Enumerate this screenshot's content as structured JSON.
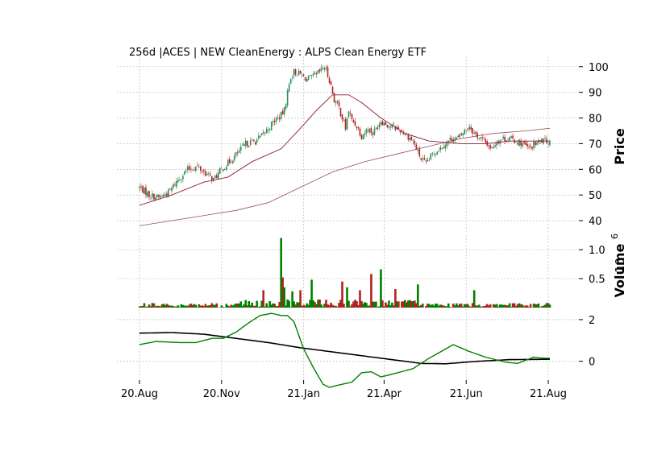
{
  "chart_data": {
    "type": "candlestick",
    "title": "256d |ACES | NEW CleanEnergy : ALPS Clean Energy ETF",
    "x_tick_labels": [
      "20.Aug",
      "20.Nov",
      "21.Jan",
      "21.Apr",
      "21.Jun",
      "21.Aug"
    ],
    "x_tick_index": [
      0,
      51,
      102,
      152,
      203,
      254
    ],
    "n_bars": 256,
    "price_panel": {
      "ylabel": "Price",
      "ylim": [
        35,
        104
      ],
      "ticks": [
        40,
        50,
        60,
        70,
        80,
        90,
        100
      ],
      "tick_labels": [
        "40",
        "50",
        "60",
        "70",
        "80",
        "90",
        "100"
      ],
      "up_color": "#2e8b57",
      "down_color": "#b22222",
      "close_keypoints": [
        [
          0,
          53
        ],
        [
          6,
          50
        ],
        [
          12,
          49
        ],
        [
          18,
          51
        ],
        [
          24,
          56
        ],
        [
          30,
          60
        ],
        [
          36,
          61
        ],
        [
          42,
          58
        ],
        [
          46,
          56
        ],
        [
          51,
          60
        ],
        [
          56,
          63
        ],
        [
          62,
          67
        ],
        [
          66,
          70
        ],
        [
          72,
          71
        ],
        [
          76,
          73
        ],
        [
          80,
          76
        ],
        [
          84,
          79
        ],
        [
          88,
          81
        ],
        [
          90,
          83
        ],
        [
          92,
          90
        ],
        [
          94,
          96
        ],
        [
          96,
          98
        ],
        [
          100,
          97
        ],
        [
          104,
          95
        ],
        [
          108,
          96
        ],
        [
          112,
          98
        ],
        [
          115,
          100
        ],
        [
          118,
          95
        ],
        [
          121,
          87
        ],
        [
          124,
          84
        ],
        [
          126,
          80
        ],
        [
          128,
          76
        ],
        [
          130,
          83
        ],
        [
          132,
          79
        ],
        [
          135,
          77
        ],
        [
          138,
          73
        ],
        [
          142,
          76
        ],
        [
          145,
          74
        ],
        [
          150,
          79
        ],
        [
          155,
          77
        ],
        [
          160,
          76
        ],
        [
          165,
          74
        ],
        [
          170,
          71
        ],
        [
          172,
          68
        ],
        [
          175,
          64
        ],
        [
          178,
          62
        ],
        [
          182,
          66
        ],
        [
          186,
          68
        ],
        [
          190,
          70
        ],
        [
          194,
          72
        ],
        [
          198,
          72
        ],
        [
          202,
          75
        ],
        [
          205,
          77
        ],
        [
          208,
          74
        ],
        [
          212,
          72
        ],
        [
          216,
          70
        ],
        [
          219,
          68
        ],
        [
          222,
          71
        ],
        [
          226,
          72
        ],
        [
          230,
          72
        ],
        [
          234,
          71
        ],
        [
          238,
          70
        ],
        [
          242,
          68
        ],
        [
          246,
          70
        ],
        [
          250,
          71
        ],
        [
          255,
          71
        ]
      ],
      "ma_short": {
        "color": "#8b1a3a",
        "points": [
          [
            0,
            46
          ],
          [
            20,
            50
          ],
          [
            40,
            55
          ],
          [
            55,
            57
          ],
          [
            70,
            63
          ],
          [
            88,
            68
          ],
          [
            100,
            76
          ],
          [
            110,
            83
          ],
          [
            120,
            89
          ],
          [
            130,
            89
          ],
          [
            138,
            86
          ],
          [
            150,
            80
          ],
          [
            165,
            74
          ],
          [
            180,
            71
          ],
          [
            200,
            70
          ],
          [
            215,
            70
          ],
          [
            230,
            71
          ],
          [
            255,
            71
          ]
        ]
      },
      "ma_long": {
        "color": "#9c4a5c",
        "points": [
          [
            0,
            38
          ],
          [
            30,
            41
          ],
          [
            60,
            44
          ],
          [
            80,
            47
          ],
          [
            100,
            53
          ],
          [
            120,
            59
          ],
          [
            140,
            63
          ],
          [
            160,
            66
          ],
          [
            180,
            69
          ],
          [
            200,
            72
          ],
          [
            220,
            74
          ],
          [
            240,
            75
          ],
          [
            255,
            76
          ]
        ]
      }
    },
    "volume_panel": {
      "ylabel": "Volume",
      "exponent_label": "10",
      "exponent_power": "6",
      "ylim": [
        0,
        1.25
      ],
      "ticks": [
        0.5,
        1.0
      ],
      "tick_labels": [
        "0.5",
        "1.0"
      ],
      "up_color": "#008000",
      "down_color": "#b22222",
      "spikes": [
        [
          88,
          1.2
        ],
        [
          89,
          0.52
        ],
        [
          90,
          0.35
        ],
        [
          107,
          0.48
        ],
        [
          126,
          0.45
        ],
        [
          144,
          0.58
        ],
        [
          150,
          0.66
        ],
        [
          159,
          0.32
        ],
        [
          173,
          0.4
        ],
        [
          208,
          0.3
        ],
        [
          129,
          0.35
        ],
        [
          137,
          0.3
        ],
        [
          100,
          0.3
        ],
        [
          95,
          0.28
        ],
        [
          77,
          0.3
        ]
      ]
    },
    "indicator_panel": {
      "ylim": [
        -0.9,
        2.5
      ],
      "ticks": [
        0,
        2
      ],
      "tick_labels": [
        "0",
        "2"
      ],
      "green_color": "#008000",
      "black_color": "#000000",
      "green_points": [
        [
          0,
          0.8
        ],
        [
          10,
          0.95
        ],
        [
          25,
          0.9
        ],
        [
          35,
          0.9
        ],
        [
          45,
          1.1
        ],
        [
          52,
          1.1
        ],
        [
          60,
          1.4
        ],
        [
          68,
          1.85
        ],
        [
          75,
          2.2
        ],
        [
          82,
          2.3
        ],
        [
          88,
          2.2
        ],
        [
          92,
          2.2
        ],
        [
          96,
          1.9
        ],
        [
          102,
          0.6
        ],
        [
          108,
          -0.3
        ],
        [
          114,
          -1.1
        ],
        [
          118,
          -1.25
        ],
        [
          126,
          -1.1
        ],
        [
          132,
          -1.0
        ],
        [
          138,
          -0.55
        ],
        [
          144,
          -0.5
        ],
        [
          150,
          -0.75
        ],
        [
          158,
          -0.6
        ],
        [
          170,
          -0.35
        ],
        [
          180,
          0.15
        ],
        [
          195,
          0.8
        ],
        [
          204,
          0.5
        ],
        [
          215,
          0.2
        ],
        [
          228,
          -0.05
        ],
        [
          235,
          -0.1
        ],
        [
          245,
          0.2
        ],
        [
          250,
          0.15
        ],
        [
          255,
          0.15
        ]
      ],
      "black_points": [
        [
          0,
          1.35
        ],
        [
          20,
          1.38
        ],
        [
          40,
          1.3
        ],
        [
          60,
          1.1
        ],
        [
          80,
          0.9
        ],
        [
          100,
          0.65
        ],
        [
          120,
          0.45
        ],
        [
          140,
          0.25
        ],
        [
          160,
          0.05
        ],
        [
          175,
          -0.1
        ],
        [
          190,
          -0.12
        ],
        [
          210,
          0.0
        ],
        [
          230,
          0.08
        ],
        [
          255,
          0.1
        ]
      ]
    }
  }
}
